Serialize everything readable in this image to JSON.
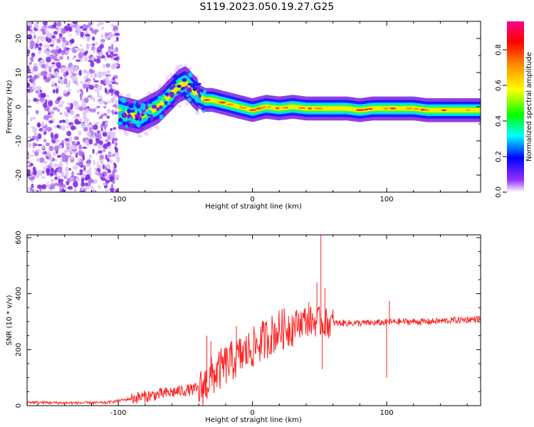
{
  "title": "S119.2023.050.19.27.G25",
  "chart_data": [
    {
      "type": "heatmap",
      "name": "spectrogram",
      "xlabel": "Height of straight line (km)",
      "ylabel": "Frequency (Hz)",
      "xlim": [
        -168,
        170
      ],
      "ylim": [
        -25,
        25
      ],
      "xticks": [
        -100,
        0,
        100
      ],
      "yticks": [
        -20,
        -10,
        0,
        10,
        20
      ],
      "colorbar": {
        "label": "Normalized spectral amplitude",
        "range": [
          0,
          0.96
        ],
        "ticks": [
          "0.0",
          "0.2",
          "0.4",
          "0.6",
          "0.8"
        ],
        "colormap": [
          "#ffffff",
          "#6600cc",
          "#0000ff",
          "#00ffff",
          "#00ff00",
          "#ffff00",
          "#ff8800",
          "#ff0000",
          "#ff0088"
        ]
      },
      "ridge": {
        "x": [
          -100,
          -95,
          -90,
          -85,
          -80,
          -75,
          -70,
          -65,
          -60,
          -55,
          -50,
          -47,
          -45,
          -40,
          -35,
          -30,
          -25,
          -20,
          -15,
          -10,
          -5,
          0,
          10,
          20,
          30,
          40,
          50,
          60,
          70,
          80,
          90,
          100,
          110,
          120,
          130,
          140,
          150,
          160,
          170
        ],
        "y": [
          -1.5,
          -2,
          -2.5,
          -3,
          -2,
          -1,
          0,
          2,
          4,
          6,
          7,
          6,
          5,
          3,
          2,
          2,
          1.5,
          1,
          0.5,
          0,
          -0.5,
          -1,
          0,
          -0.5,
          0,
          -0.5,
          -0.5,
          -0.5,
          -0.5,
          -1,
          -0.5,
          -0.5,
          -0.5,
          -0.5,
          -1,
          -1,
          -1,
          -1,
          -1
        ]
      }
    },
    {
      "type": "line",
      "name": "snr",
      "xlabel": "Height of straight line (km)",
      "ylabel": "SNR (10 * v/v)",
      "xlim": [
        -168,
        170
      ],
      "ylim": [
        0,
        610
      ],
      "xticks": [
        -100,
        0,
        100
      ],
      "yticks": [
        0,
        200,
        400,
        600
      ],
      "line_color": "#ff2222",
      "envelope": {
        "x": [
          -168,
          -140,
          -110,
          -90,
          -70,
          -50,
          -38,
          -30,
          -20,
          -10,
          0,
          10,
          20,
          30,
          38,
          45,
          50,
          55,
          60,
          70,
          80,
          90,
          100,
          110,
          120,
          130,
          140,
          150,
          160,
          170
        ],
        "y": [
          12,
          10,
          10,
          25,
          40,
          55,
          60,
          105,
          145,
          175,
          205,
          240,
          270,
          285,
          305,
          300,
          300,
          295,
          295,
          295,
          295,
          295,
          298,
          300,
          300,
          300,
          302,
          305,
          307,
          310
        ]
      },
      "spikes": [
        {
          "x": -34,
          "y": 250
        },
        {
          "x": -31,
          "y": 230
        },
        {
          "x": -12,
          "y": 285
        },
        {
          "x": 42,
          "y": 370
        },
        {
          "x": 48,
          "y": 440
        },
        {
          "x": 51,
          "y": 610
        },
        {
          "x": 52,
          "y": 130
        },
        {
          "x": 54,
          "y": 420
        },
        {
          "x": 100,
          "y": 100
        },
        {
          "x": 102,
          "y": 375
        }
      ]
    }
  ]
}
